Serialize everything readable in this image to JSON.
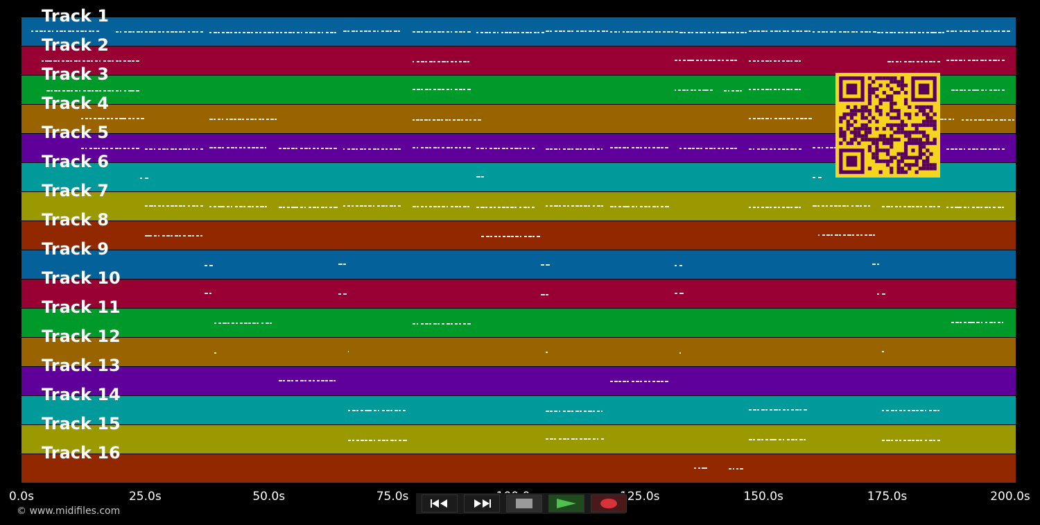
{
  "colors": {
    "lanes": [
      "#04619a",
      "#980033",
      "#009a2b",
      "#996300",
      "#5f009a",
      "#009a9a",
      "#9a9a00",
      "#922800",
      "#04619a",
      "#980033",
      "#009a2b",
      "#996300",
      "#5f009a",
      "#009a9a",
      "#9a9a00",
      "#922800"
    ],
    "qr_background": "#f7d51e",
    "qr_foreground": "#57005c"
  },
  "tracks": [
    {
      "label": "Track 1"
    },
    {
      "label": "Track 2"
    },
    {
      "label": "Track 3"
    },
    {
      "label": "Track 4"
    },
    {
      "label": "Track 5"
    },
    {
      "label": "Track 6"
    },
    {
      "label": "Track 7"
    },
    {
      "label": "Track 8"
    },
    {
      "label": "Track 9"
    },
    {
      "label": "Track 10"
    },
    {
      "label": "Track 11"
    },
    {
      "label": "Track 12"
    },
    {
      "label": "Track 13"
    },
    {
      "label": "Track 14"
    },
    {
      "label": "Track 15"
    },
    {
      "label": "Track 16"
    }
  ],
  "timeline": {
    "duration_seconds": 201,
    "ticks": [
      "0.0s",
      "25.0s",
      "50.0s",
      "75.0s",
      "100.0s",
      "125.0s",
      "150.0s",
      "175.0s",
      "200.0s"
    ],
    "tick_values": [
      0,
      25,
      50,
      75,
      100,
      125,
      150,
      175,
      200
    ]
  },
  "notes_by_track": [
    [
      [
        2,
        16
      ],
      [
        19,
        37
      ],
      [
        38,
        64
      ],
      [
        65,
        77
      ],
      [
        79,
        91
      ],
      [
        92,
        106
      ],
      [
        106,
        119
      ],
      [
        119,
        133
      ],
      [
        133,
        147
      ],
      [
        147,
        160
      ],
      [
        160,
        173
      ],
      [
        173,
        187
      ],
      [
        187,
        200
      ]
    ],
    [
      [
        4,
        24
      ],
      [
        79,
        91
      ],
      [
        132,
        145
      ],
      [
        147,
        158
      ],
      [
        175,
        186
      ],
      [
        187,
        199
      ]
    ],
    [
      [
        5,
        24
      ],
      [
        79,
        91
      ],
      [
        132,
        140
      ],
      [
        142,
        146
      ],
      [
        147,
        158
      ],
      [
        188,
        199
      ]
    ],
    [
      [
        12,
        25
      ],
      [
        38,
        52
      ],
      [
        79,
        93
      ],
      [
        147,
        160
      ],
      [
        175,
        189
      ],
      [
        190,
        202
      ]
    ],
    [
      [
        12,
        24
      ],
      [
        25,
        37
      ],
      [
        38,
        50
      ],
      [
        52,
        64
      ],
      [
        65,
        77
      ],
      [
        79,
        91
      ],
      [
        92,
        104
      ],
      [
        106,
        118
      ],
      [
        119,
        131
      ],
      [
        133,
        145
      ],
      [
        147,
        158
      ],
      [
        160,
        172
      ],
      [
        174,
        186
      ],
      [
        187,
        199
      ]
    ],
    [
      [
        24,
        26
      ],
      [
        92,
        94
      ],
      [
        160,
        162
      ]
    ],
    [
      [
        25,
        37
      ],
      [
        38,
        50
      ],
      [
        52,
        64
      ],
      [
        65,
        77
      ],
      [
        79,
        91
      ],
      [
        92,
        104
      ],
      [
        106,
        118
      ],
      [
        119,
        131
      ],
      [
        147,
        158
      ],
      [
        160,
        172
      ],
      [
        174,
        186
      ],
      [
        187,
        199
      ]
    ],
    [
      [
        25,
        37
      ],
      [
        93,
        105
      ],
      [
        161,
        173
      ]
    ],
    [
      [
        37,
        39
      ],
      [
        64,
        66
      ],
      [
        105,
        107
      ],
      [
        132,
        134
      ],
      [
        172,
        174
      ]
    ],
    [
      [
        37,
        39
      ],
      [
        64,
        66
      ],
      [
        105,
        107
      ],
      [
        132,
        134
      ],
      [
        173,
        175
      ]
    ],
    [
      [
        39,
        51
      ],
      [
        79,
        91
      ],
      [
        188,
        199
      ]
    ],
    [
      [
        39,
        39.5
      ],
      [
        66,
        66.5
      ],
      [
        106,
        106.5
      ],
      [
        133,
        133.5
      ],
      [
        174,
        174.5
      ]
    ],
    [
      [
        52,
        64
      ],
      [
        119,
        131
      ]
    ],
    [
      [
        66,
        78
      ],
      [
        106,
        118
      ],
      [
        147,
        159
      ],
      [
        174,
        186
      ]
    ],
    [
      [
        66,
        78
      ],
      [
        106,
        118
      ],
      [
        147,
        159
      ],
      [
        174,
        186
      ]
    ],
    [
      [
        136,
        139
      ],
      [
        143,
        146
      ]
    ]
  ],
  "copyright": "© www.midifiles.com",
  "controls": [
    {
      "name": "rewind-button",
      "icon": "rewind-icon"
    },
    {
      "name": "fast-forward-button",
      "icon": "fast-forward-icon"
    },
    {
      "name": "stop-button",
      "icon": "stop-icon"
    },
    {
      "name": "play-button",
      "icon": "play-icon"
    },
    {
      "name": "record-button",
      "icon": "record-icon"
    }
  ]
}
